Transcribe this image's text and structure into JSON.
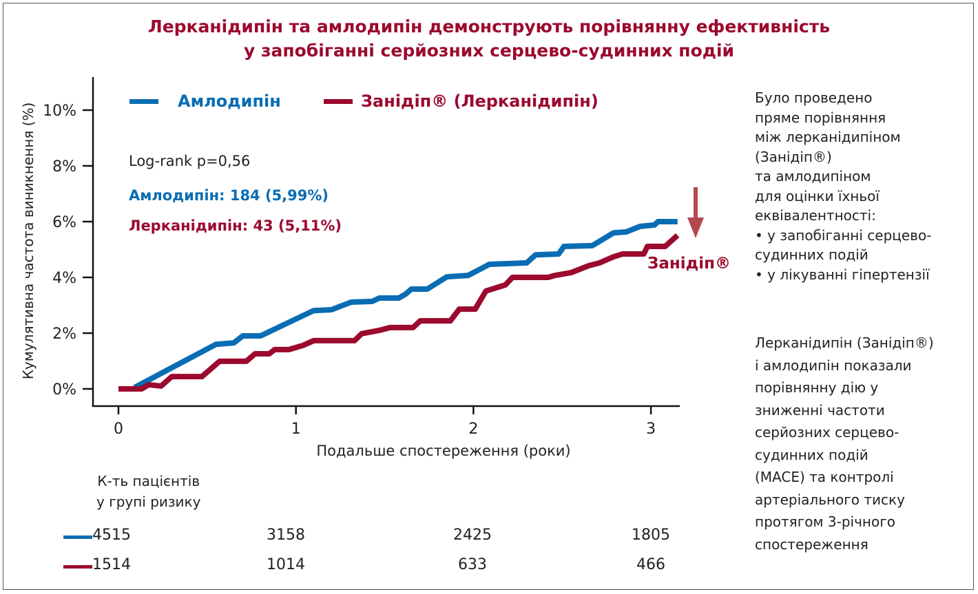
{
  "title_line1": "Лерканідипін та амлодипін демонструють порівнянну ефективність",
  "title_line2": "у запобіганні серйозних серцево-судинних подій",
  "colors": {
    "amlodipine": "#0a6db3",
    "lercanidipine": "#9b0a2e",
    "title": "#9b0a2e",
    "arrow": "#b5474f"
  },
  "legend": {
    "amlodipine": "Амлодипін",
    "lercanidipine": "Занідіп® (Лерканідипін)"
  },
  "stats": {
    "logrank": "Log-rank p=0,56",
    "amlodipine": "Амлодипін: 184 (5,99%)",
    "lercanidipine": "Лерканідипін: 43 (5,11%)"
  },
  "annotation": {
    "label": "Занідіп®",
    "icon": "arrow-down-icon"
  },
  "risk_table": {
    "header_line1": "К-ть пацієнтів",
    "header_line2": "у групі ризику",
    "rows": [
      {
        "series": "amlodipine",
        "values": [
          "4515",
          "3158",
          "2425",
          "1805"
        ]
      },
      {
        "series": "lercanidipine",
        "values": [
          "1514",
          "1014",
          "633",
          "466"
        ]
      }
    ]
  },
  "side_text": {
    "para1": "Було проведено\nпряме порівняння\nміж лерканідипіном\n(Занідіп®)\nта амлодипіном\nдля оцінки їхньої\nеквівалентності:\n• у запобіганні серцево-\nсудинних подій\n• у лікуванні гіпертензії",
    "para2": "Лерканідипін (Занідіп®)\nі амлодипін показали\nпорівнянну дію у\nзниженні частоти\nсерйозних  серцево-\nсудинних подій\n(MACE) та контролі\nартеріального тиску\nпротягом 3-річного\nспостереження"
  },
  "chart_data": {
    "type": "line",
    "title": "Лерканідипін та амлодипін демонструють порівнянну ефективність у запобіганні серйозних серцево-судинних подій",
    "xlabel": "Подальше спостереження (роки)",
    "ylabel": "Кумулятивна частота виникнення (%)",
    "xlim": [
      -0.15,
      3.15
    ],
    "ylim": [
      0,
      11
    ],
    "xticks": [
      "0",
      "1",
      "2",
      "3"
    ],
    "yticks": [
      "0%",
      "2%",
      "4%",
      "6%",
      "8%",
      "10%"
    ],
    "grid": false,
    "legend": "top",
    "series": [
      {
        "name": "Амлодипін",
        "key": "amlodipine",
        "x": [
          0.09,
          0.55,
          0.65,
          0.7,
          0.8,
          1.1,
          1.2,
          1.31,
          1.43,
          1.47,
          1.58,
          1.62,
          1.65,
          1.74,
          1.85,
          1.97,
          2.09,
          2.3,
          2.35,
          2.48,
          2.51,
          2.67,
          2.79,
          2.86,
          2.94,
          3.02,
          3.04,
          3.15
        ],
        "y": [
          0.05,
          1.6,
          1.65,
          1.9,
          1.9,
          2.81,
          2.84,
          3.11,
          3.14,
          3.26,
          3.26,
          3.41,
          3.58,
          3.58,
          4.02,
          4.07,
          4.47,
          4.52,
          4.81,
          4.84,
          5.11,
          5.14,
          5.6,
          5.63,
          5.83,
          5.88,
          6.0,
          6.0
        ]
      },
      {
        "name": "Занідіп® (Лерканідипін)",
        "key": "lercanidipine",
        "x": [
          0,
          0.13,
          0.17,
          0.24,
          0.3,
          0.47,
          0.57,
          0.72,
          0.77,
          0.85,
          0.88,
          0.96,
          1.04,
          1.1,
          1.33,
          1.37,
          1.47,
          1.53,
          1.66,
          1.7,
          1.87,
          1.92,
          2.01,
          2.07,
          2.18,
          2.22,
          2.42,
          2.46,
          2.55,
          2.65,
          2.71,
          2.79,
          2.84,
          2.96,
          2.98,
          3.08,
          3.15
        ],
        "y": [
          0,
          0,
          0.15,
          0.1,
          0.44,
          0.44,
          0.99,
          0.99,
          1.26,
          1.26,
          1.41,
          1.41,
          1.56,
          1.73,
          1.73,
          1.98,
          2.1,
          2.2,
          2.2,
          2.44,
          2.44,
          2.86,
          2.86,
          3.51,
          3.73,
          4.0,
          4.0,
          4.07,
          4.17,
          4.42,
          4.52,
          4.74,
          4.84,
          4.84,
          5.11,
          5.11,
          5.51
        ]
      }
    ]
  }
}
